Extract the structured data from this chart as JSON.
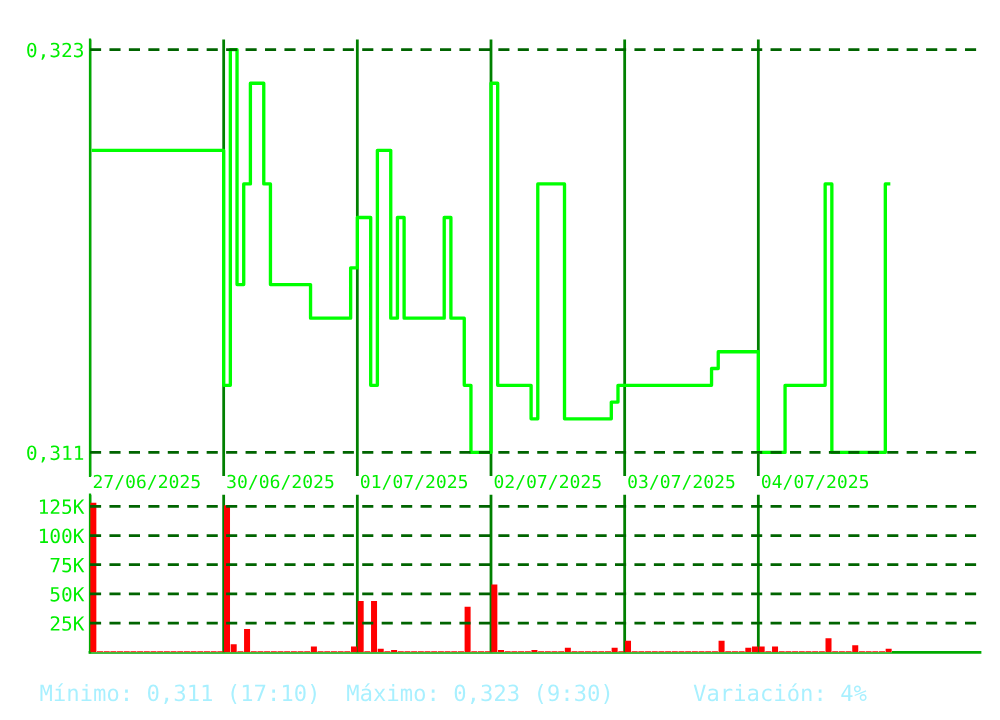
{
  "chart_data": [
    {
      "type": "step",
      "categories": [
        null,
        null,
        null,
        null,
        null,
        null,
        null,
        null,
        null,
        null,
        null,
        null,
        null,
        null,
        null,
        null,
        null,
        null,
        null,
        null,
        null,
        null,
        null,
        null,
        null,
        null,
        null,
        null,
        null,
        null,
        null,
        null,
        null,
        null,
        null,
        null,
        null,
        null,
        null,
        null,
        null,
        null,
        null,
        null,
        null,
        null,
        null,
        null,
        null,
        null,
        null,
        null,
        null,
        null,
        null,
        null,
        null,
        null,
        null,
        null,
        null,
        null,
        null,
        null,
        null,
        null,
        null,
        null,
        null,
        null,
        null,
        null,
        null,
        null,
        null,
        null,
        null,
        null,
        null,
        null,
        null,
        null,
        null,
        null,
        null,
        null,
        null,
        null,
        null,
        null,
        null,
        null,
        null,
        null,
        null,
        null,
        null,
        null,
        null,
        null,
        null,
        null,
        null,
        null,
        null,
        null,
        null,
        null,
        null,
        null,
        null,
        null,
        null,
        null,
        null,
        null,
        null,
        null,
        null,
        null
      ],
      "series": [
        {
          "color": "#00ff00",
          "values": [
            0.32,
            0.32,
            0.32,
            0.32,
            0.32,
            0.32,
            0.32,
            0.32,
            0.32,
            0.32,
            0.32,
            0.32,
            0.32,
            0.32,
            0.32,
            0.32,
            0.32,
            0.32,
            0.32,
            0.32,
            0.313,
            0.323,
            0.316,
            0.319,
            0.322,
            0.322,
            0.319,
            0.316,
            0.316,
            0.316,
            0.316,
            0.316,
            0.316,
            0.315,
            0.315,
            0.315,
            0.315,
            0.315,
            0.315,
            0.3165,
            0.318,
            0.318,
            0.313,
            0.32,
            0.32,
            0.315,
            0.318,
            0.315,
            0.315,
            0.315,
            0.315,
            0.315,
            0.315,
            0.318,
            0.315,
            0.315,
            0.313,
            0.311,
            0.311,
            0.311,
            0.322,
            0.313,
            0.313,
            0.313,
            0.313,
            0.313,
            0.312,
            0.319,
            0.319,
            0.319,
            0.319,
            0.312,
            0.312,
            0.312,
            0.312,
            0.312,
            0.312,
            0.312,
            0.3125,
            0.313,
            0.313,
            0.313,
            0.313,
            0.313,
            0.313,
            0.313,
            0.313,
            0.313,
            0.313,
            0.313,
            0.313,
            0.313,
            0.313,
            0.3135,
            0.314,
            0.314,
            0.314,
            0.314,
            0.314,
            0.314,
            0.311,
            0.311,
            0.311,
            0.311,
            0.313,
            0.313,
            0.313,
            0.313,
            0.313,
            0.313,
            0.319,
            0.311,
            0.311,
            0.311,
            0.311,
            0.311,
            0.311,
            0.311,
            0.311,
            0.319
          ]
        }
      ],
      "ylim": [
        0.3103,
        0.3233
      ],
      "yticks": [
        {
          "value": 0.311,
          "label": "0,311"
        },
        {
          "value": 0.323,
          "label": "0,323"
        }
      ],
      "grid": "y"
    },
    {
      "type": "bar",
      "categories": [
        null,
        null,
        null,
        null,
        null,
        null,
        null,
        null,
        "27/06/2025",
        null,
        null,
        null,
        null,
        null,
        null,
        null,
        null,
        null,
        null,
        null,
        null,
        null,
        null,
        null,
        null,
        null,
        null,
        null,
        "30/06/2025",
        null,
        null,
        null,
        null,
        null,
        null,
        null,
        null,
        null,
        null,
        null,
        null,
        null,
        null,
        null,
        null,
        null,
        null,
        null,
        "01/07/2025",
        null,
        null,
        null,
        null,
        null,
        null,
        null,
        null,
        null,
        null,
        null,
        null,
        null,
        null,
        null,
        null,
        null,
        null,
        null,
        "02/07/2025",
        null,
        null,
        null,
        null,
        null,
        null,
        null,
        null,
        null,
        null,
        null,
        null,
        null,
        null,
        null,
        null,
        null,
        null,
        null,
        "03/07/2025",
        null,
        null,
        null,
        null,
        null,
        null,
        null,
        null,
        null,
        null,
        null,
        null,
        null,
        null,
        null,
        null,
        null,
        null,
        null,
        "04/07/2025",
        null,
        null,
        null,
        null,
        null,
        null,
        null,
        null,
        null,
        null,
        null
      ],
      "series": [
        {
          "color": "#ff0000",
          "values": [
            128000,
            1000,
            1000,
            1000,
            1000,
            1000,
            1000,
            1000,
            1000,
            1000,
            1000,
            1000,
            1000,
            1000,
            1000,
            1000,
            1000,
            1000,
            1000,
            1000,
            126000,
            7000,
            1000,
            20000,
            1000,
            1000,
            1000,
            1000,
            1000,
            1000,
            1000,
            1000,
            1000,
            5000,
            1000,
            1000,
            1000,
            1000,
            1000,
            5000,
            44000,
            1000,
            44000,
            3000,
            1000,
            2000,
            1000,
            1000,
            1000,
            1000,
            1000,
            1000,
            1000,
            1000,
            1000,
            1000,
            39000,
            1000,
            1000,
            1000,
            58000,
            2000,
            1000,
            1000,
            1000,
            1000,
            2000,
            1000,
            1000,
            1000,
            1000,
            4000,
            1000,
            1000,
            1000,
            1000,
            1000,
            1000,
            4000,
            1000,
            10000,
            1000,
            1000,
            1000,
            1000,
            1000,
            1000,
            1000,
            1000,
            1000,
            1000,
            1000,
            1000,
            1000,
            10000,
            1000,
            1000,
            1000,
            4000,
            5000,
            5000,
            1000,
            5000,
            1000,
            1000,
            1000,
            1000,
            1000,
            1000,
            1000,
            12000,
            1000,
            1000,
            1000,
            6000,
            1000,
            1000,
            1000,
            1000,
            3000
          ]
        }
      ],
      "ylim": [
        0,
        135000
      ],
      "yticks": [
        {
          "value": 25000,
          "label": "25K"
        },
        {
          "value": 50000,
          "label": "50K"
        },
        {
          "value": 75000,
          "label": "75K"
        },
        {
          "value": 100000,
          "label": "100K"
        },
        {
          "value": 125000,
          "label": "125K"
        }
      ],
      "grid": "y",
      "annotations": [
        "Mínimo: 0,311 (17:10)",
        "Máximo: 0,323 (9:30)",
        "Variación: 4%"
      ]
    }
  ]
}
